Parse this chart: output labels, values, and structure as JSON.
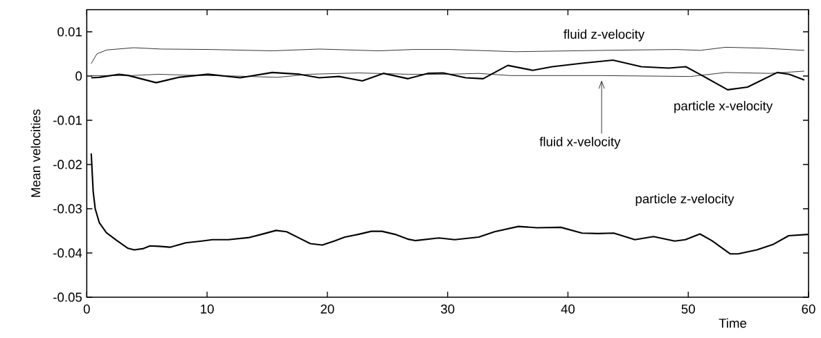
{
  "chart_data": {
    "type": "line",
    "xlabel": "Time",
    "ylabel": "Mean velocities",
    "xlim": [
      0,
      60
    ],
    "ylim": [
      -0.05,
      0.015
    ],
    "xticks": [
      0,
      10,
      20,
      30,
      40,
      50,
      60
    ],
    "yticks": [
      -0.05,
      -0.04,
      -0.03,
      -0.02,
      -0.01,
      0,
      0.01
    ],
    "series": [
      {
        "name": "fluid z-velocity",
        "color": "#000000",
        "x": [
          0.37,
          0.84,
          1.66,
          3.92,
          6.18,
          10.29,
          15.42,
          19.32,
          24.25,
          27.12,
          30.16,
          35.63,
          42.81,
          48.97,
          51.0,
          53.1,
          56.2,
          59.65
        ],
        "values": [
          0.0028,
          0.005,
          0.0059,
          0.0064,
          0.0061,
          0.006,
          0.0057,
          0.0061,
          0.0057,
          0.006,
          0.006,
          0.0055,
          0.0058,
          0.006,
          0.0058,
          0.0065,
          0.0063,
          0.0058
        ]
      },
      {
        "name": "particle x-velocity",
        "color": "#000000",
        "x": [
          0.37,
          1.05,
          2.69,
          3.5,
          5.77,
          7.62,
          10.08,
          12.75,
          15.42,
          17.68,
          19.32,
          20.96,
          22.91,
          24.66,
          26.71,
          28.35,
          29.62,
          31.5,
          32.95,
          35.0,
          37.07,
          38.7,
          41.17,
          43.74,
          46.1,
          48.36,
          49.8,
          51.03,
          53.28,
          54.93,
          57.4,
          58.4,
          59.65
        ],
        "values": [
          -0.0004,
          -0.0003,
          0.0004,
          0.0001,
          -0.0015,
          -0.0003,
          0.0004,
          -0.0004,
          0.0008,
          0.0004,
          -0.0004,
          -0.0001,
          -0.0011,
          0.0006,
          -0.0006,
          0.0006,
          0.0007,
          -0.0004,
          -0.0006,
          0.0024,
          0.0013,
          0.0021,
          0.0029,
          0.0036,
          0.0021,
          0.0018,
          0.0021,
          0.0003,
          -0.0031,
          -0.0025,
          0.0008,
          0.0004,
          -0.0009
        ]
      },
      {
        "name": "fluid x-velocity",
        "color": "#000000",
        "x": [
          0.37,
          2.07,
          3.7,
          5.97,
          8.23,
          12.34,
          15.83,
          18.5,
          22.61,
          26.71,
          30.16,
          32.55,
          35.22,
          42.81,
          50.2,
          53.1,
          56.8,
          59.65
        ],
        "values": [
          0.0001,
          0.0001,
          0.0001,
          0.0004,
          0.0002,
          0.0,
          -0.0003,
          0.0004,
          0.0007,
          0.0004,
          0.0004,
          0.0006,
          0.0001,
          0.0001,
          -0.0001,
          0.0008,
          0.0006,
          0.0011
        ]
      },
      {
        "name": "particle z-velocity",
        "color": "#000000",
        "x": [
          0.37,
          0.53,
          0.7,
          1.05,
          1.63,
          2.51,
          3.39,
          3.94,
          4.71,
          5.26,
          6.04,
          6.92,
          8.24,
          9.56,
          10.44,
          11.76,
          13.52,
          14.51,
          15.73,
          16.61,
          17.71,
          18.59,
          19.58,
          20.57,
          21.45,
          22.56,
          23.66,
          24.54,
          25.64,
          26.74,
          27.29,
          29.27,
          30.59,
          32.58,
          33.9,
          35.88,
          37.42,
          39.41,
          41.17,
          42.49,
          43.81,
          45.57,
          47.11,
          48.88,
          49.76,
          50.97,
          51.96,
          53.5,
          54.16,
          55.7,
          57.03,
          58.35,
          59.96
        ],
        "values": [
          -0.0175,
          -0.026,
          -0.03,
          -0.0332,
          -0.0354,
          -0.0372,
          -0.0389,
          -0.0393,
          -0.039,
          -0.0384,
          -0.0385,
          -0.0387,
          -0.0377,
          -0.0373,
          -0.037,
          -0.037,
          -0.0365,
          -0.0358,
          -0.0349,
          -0.0352,
          -0.0367,
          -0.0379,
          -0.0382,
          -0.0373,
          -0.0364,
          -0.0358,
          -0.0351,
          -0.0351,
          -0.0358,
          -0.0369,
          -0.0372,
          -0.0366,
          -0.037,
          -0.0364,
          -0.0352,
          -0.034,
          -0.0343,
          -0.0342,
          -0.0355,
          -0.0356,
          -0.0355,
          -0.037,
          -0.0363,
          -0.0373,
          -0.037,
          -0.0357,
          -0.0372,
          -0.0402,
          -0.0402,
          -0.0393,
          -0.0381,
          -0.0361,
          -0.0358
        ]
      }
    ]
  }
}
